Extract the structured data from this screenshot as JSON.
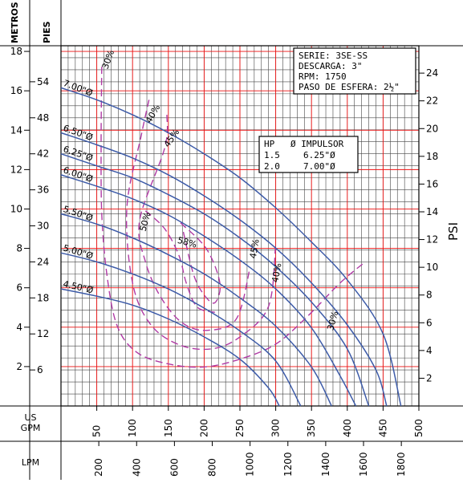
{
  "chart_data": {
    "type": "line",
    "axes": {
      "metros_label": "METROS",
      "pies_label": "PIES",
      "psi_label": "PSI",
      "gpm_label_line1": "US",
      "gpm_label_line2": "GPM",
      "lpm_label": "LPM",
      "metros_ticks": [
        "2",
        "4",
        "6",
        "8",
        "10",
        "12",
        "14",
        "16",
        "18"
      ],
      "pies_ticks": [
        "6",
        "12",
        "18",
        "24",
        "30",
        "36",
        "42",
        "48",
        "54"
      ],
      "psi_ticks": [
        "2",
        "4",
        "6",
        "8",
        "10",
        "12",
        "14",
        "16",
        "18",
        "20",
        "22",
        "24"
      ],
      "gpm_ticks": [
        "50",
        "100",
        "150",
        "200",
        "250",
        "300",
        "350",
        "400",
        "450",
        "500"
      ],
      "lpm_ticks": [
        "200",
        "400",
        "600",
        "800",
        "1000",
        "1200",
        "1400",
        "1600",
        "1800"
      ],
      "x_range_gpm": [
        0,
        500
      ],
      "y_range_feet": [
        0,
        60
      ]
    },
    "info_box": {
      "line1": "SERIE: 3SE-SS",
      "line2": "DESCARGA: 3\"",
      "line3": "RPM: 1750",
      "line4": "PASO DE ESFERA: 2½\""
    },
    "impeller_table": {
      "header_hp": "HP",
      "header_impulsor": "Ø IMPULSOR",
      "rows": [
        {
          "hp": "1.5",
          "diameter": "6.25\"Ø"
        },
        {
          "hp": "2.0",
          "diameter": "7.00\"Ø"
        }
      ]
    },
    "series": [
      {
        "name": "7.00\"Ø",
        "points": [
          [
            0,
            53
          ],
          [
            50,
            51
          ],
          [
            100,
            48.5
          ],
          [
            150,
            45.5
          ],
          [
            200,
            42
          ],
          [
            250,
            38
          ],
          [
            300,
            33
          ],
          [
            350,
            27.3
          ],
          [
            400,
            21
          ],
          [
            450,
            12
          ],
          [
            475,
            0
          ]
        ]
      },
      {
        "name": "6.50\"Ø",
        "points": [
          [
            0,
            45.5
          ],
          [
            50,
            43.5
          ],
          [
            100,
            41.3
          ],
          [
            150,
            38.5
          ],
          [
            200,
            35
          ],
          [
            250,
            31
          ],
          [
            300,
            26.3
          ],
          [
            350,
            20.5
          ],
          [
            400,
            13.5
          ],
          [
            440,
            6
          ],
          [
            455,
            0
          ]
        ]
      },
      {
        "name": "6.25\"Ø",
        "points": [
          [
            0,
            42
          ],
          [
            50,
            40
          ],
          [
            100,
            38
          ],
          [
            150,
            35.2
          ],
          [
            200,
            32
          ],
          [
            250,
            28
          ],
          [
            300,
            23.2
          ],
          [
            350,
            17.3
          ],
          [
            400,
            9.5
          ],
          [
            430,
            0
          ]
        ]
      },
      {
        "name": "6.00\"Ø",
        "points": [
          [
            0,
            38.5
          ],
          [
            50,
            36.6
          ],
          [
            100,
            34.5
          ],
          [
            150,
            31.8
          ],
          [
            200,
            28.3
          ],
          [
            250,
            24.3
          ],
          [
            300,
            19.5
          ],
          [
            350,
            13
          ],
          [
            390,
            5
          ],
          [
            412,
            0
          ]
        ]
      },
      {
        "name": "5.50\"Ø",
        "points": [
          [
            0,
            32
          ],
          [
            50,
            30.3
          ],
          [
            100,
            28
          ],
          [
            150,
            25.2
          ],
          [
            200,
            22
          ],
          [
            250,
            18
          ],
          [
            300,
            13.3
          ],
          [
            350,
            6.5
          ],
          [
            378,
            0
          ]
        ]
      },
      {
        "name": "5.00\"Ø",
        "points": [
          [
            0,
            25.5
          ],
          [
            50,
            24
          ],
          [
            100,
            22
          ],
          [
            150,
            19.5
          ],
          [
            200,
            16.3
          ],
          [
            250,
            12.5
          ],
          [
            300,
            7.5
          ],
          [
            335,
            0
          ]
        ]
      },
      {
        "name": "4.50\"Ø",
        "points": [
          [
            0,
            19.5
          ],
          [
            50,
            18.3
          ],
          [
            100,
            16.8
          ],
          [
            150,
            14.5
          ],
          [
            200,
            11.5
          ],
          [
            250,
            7.8
          ],
          [
            290,
            3
          ],
          [
            305,
            0
          ]
        ]
      }
    ],
    "efficiency_labels": [
      "30%",
      "40%",
      "45%",
      "50%",
      "58%",
      "45%",
      "40%",
      "30%"
    ],
    "efficiency_curves": [
      {
        "name": "30%",
        "points": [
          [
            57,
            56.5
          ],
          [
            56,
            44
          ],
          [
            57,
            32
          ],
          [
            64,
            22
          ],
          [
            78,
            13.5
          ],
          [
            105,
            9
          ],
          [
            150,
            7
          ],
          [
            200,
            6.5
          ],
          [
            250,
            7.8
          ],
          [
            300,
            10.3
          ],
          [
            345,
            15
          ],
          [
            390,
            20.5
          ],
          [
            425,
            24
          ]
        ]
      },
      {
        "name": "40%",
        "points": [
          [
            123,
            51
          ],
          [
            112,
            45
          ],
          [
            92,
            33
          ],
          [
            100,
            20.5
          ],
          [
            125,
            13.6
          ],
          [
            165,
            10.2
          ],
          [
            210,
            9.5
          ],
          [
            250,
            11.5
          ],
          [
            290,
            16.6
          ],
          [
            300,
            27
          ]
        ]
      },
      {
        "name": "45%",
        "points": [
          [
            148,
            48.5
          ],
          [
            145,
            43
          ],
          [
            110,
            31
          ],
          [
            118,
            24
          ],
          [
            140,
            18
          ],
          [
            170,
            13.8
          ],
          [
            205,
            12.6
          ],
          [
            245,
            14.5
          ],
          [
            264,
            23
          ]
        ]
      },
      {
        "name": "50%",
        "points": [
          [
            118,
            32.5
          ],
          [
            145,
            29.5
          ],
          [
            165,
            25
          ],
          [
            175,
            20.5
          ],
          [
            190,
            16.5
          ],
          [
            215,
            15.6
          ]
        ]
      },
      {
        "name": "58%",
        "points": [
          [
            167,
            30.5
          ],
          [
            203,
            26.2
          ],
          [
            222,
            20.5
          ],
          [
            215,
            17.2
          ],
          [
            200,
            18.5
          ],
          [
            185,
            22
          ],
          [
            170,
            29.5
          ]
        ]
      }
    ]
  }
}
